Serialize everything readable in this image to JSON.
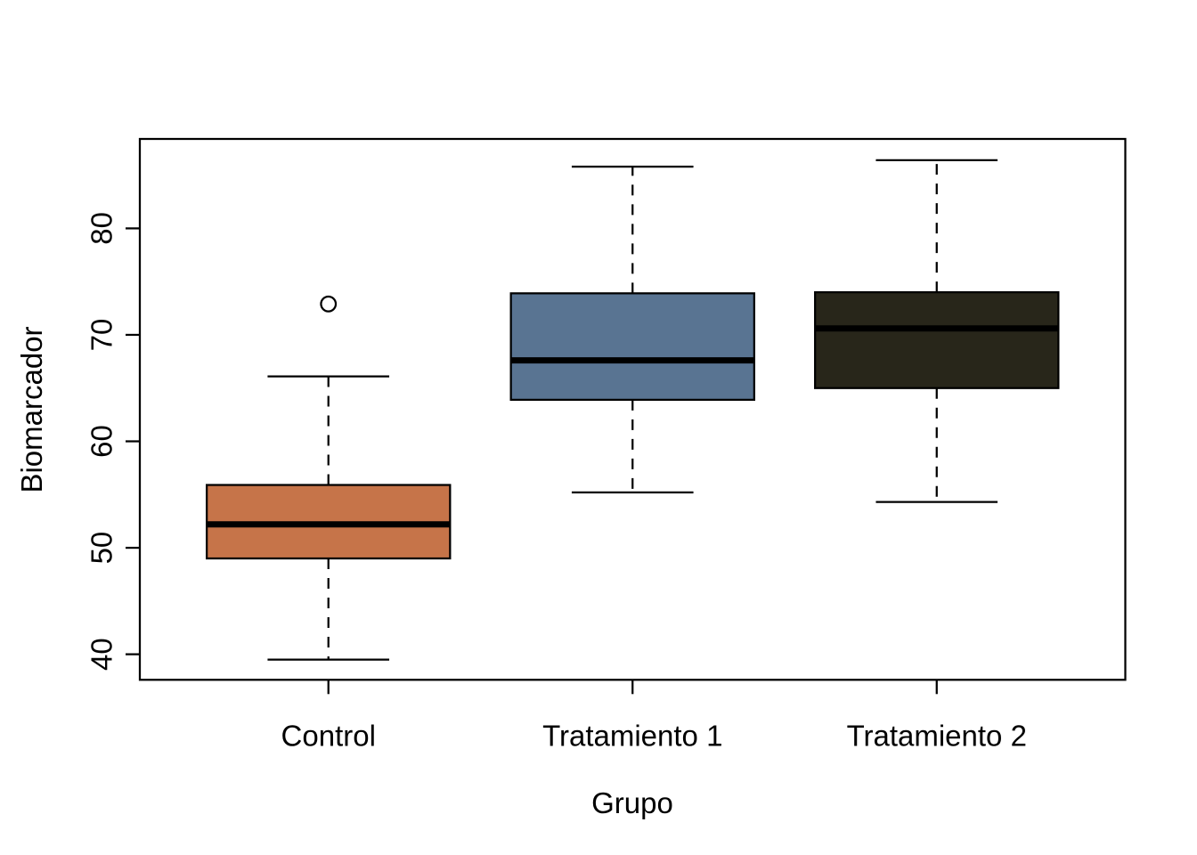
{
  "chart_data": {
    "type": "boxplot",
    "xlabel": "Grupo",
    "ylabel": "Biomarcador",
    "categories": [
      "Control",
      "Tratamiento 1",
      "Tratamiento 2"
    ],
    "y_ticks": [
      40,
      50,
      60,
      70,
      80
    ],
    "ylim": [
      37.6,
      88.4
    ],
    "grid": false,
    "legend_position": "none",
    "background_color": "#FFFFFF",
    "line_color": "#000000",
    "series": [
      {
        "name": "Control",
        "box_color": "#C67449",
        "whisker_low": 39.5,
        "q1": 49.0,
        "median": 52.2,
        "q3": 55.9,
        "whisker_high": 66.1,
        "outliers": [
          72.9
        ]
      },
      {
        "name": "Tratamiento 1",
        "box_color": "#597492",
        "whisker_low": 55.2,
        "q1": 63.9,
        "median": 67.6,
        "q3": 73.9,
        "whisker_high": 85.8,
        "outliers": []
      },
      {
        "name": "Tratamiento 2",
        "box_color": "#28261A",
        "whisker_low": 54.3,
        "q1": 65.0,
        "median": 70.6,
        "q3": 74.0,
        "whisker_high": 86.4,
        "outliers": []
      }
    ]
  }
}
